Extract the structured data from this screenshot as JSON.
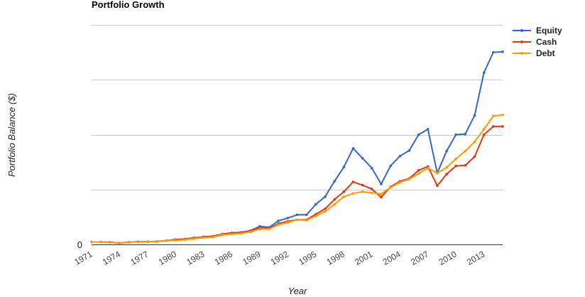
{
  "chart_data": {
    "type": "line",
    "title": "Portfolio Growth",
    "xlabel": "Year",
    "ylabel": "Portfolio Balance ($)",
    "x": [
      1971,
      1972,
      1973,
      1974,
      1975,
      1976,
      1977,
      1978,
      1979,
      1980,
      1981,
      1982,
      1983,
      1984,
      1985,
      1986,
      1987,
      1988,
      1989,
      1990,
      1991,
      1992,
      1993,
      1994,
      1995,
      1996,
      1997,
      1998,
      1999,
      2000,
      2001,
      2002,
      2003,
      2004,
      2005,
      2006,
      2007,
      2008,
      2009,
      2010,
      2011,
      2012,
      2013,
      2014,
      2015
    ],
    "x_tick_labels": [
      "1971",
      "1974",
      "1977",
      "1980",
      "1983",
      "1986",
      "1989",
      "1992",
      "1995",
      "1998",
      "2001",
      "2004",
      "2007",
      "2010",
      "2013"
    ],
    "x_tick_values": [
      1971,
      1974,
      1977,
      1980,
      1983,
      1986,
      1989,
      1992,
      1995,
      1998,
      2001,
      2004,
      2007,
      2010,
      2013
    ],
    "y_tick_labels": [
      "0"
    ],
    "ylim": [
      0,
      400
    ],
    "y_gridlines": [
      0,
      100,
      200,
      300,
      400
    ],
    "grid": true,
    "legend_position": "top-right",
    "series": [
      {
        "name": "Equity",
        "color": "#3366cc",
        "values": [
          4.5,
          4.5,
          4.0,
          2.5,
          4.0,
          5.0,
          5.0,
          5.5,
          7.0,
          8.0,
          9.0,
          11.0,
          12.5,
          14.0,
          18.0,
          21.0,
          21.0,
          25.0,
          33.0,
          31.0,
          43.0,
          48.0,
          54.0,
          54.0,
          73.0,
          87.0,
          115.0,
          141.0,
          175.0,
          157.0,
          139.0,
          110.0,
          143.0,
          161.0,
          171.0,
          200.0,
          210.0,
          130.0,
          170.0,
          200.0,
          201.0,
          235.0,
          313.0,
          350.0,
          351.0
        ]
      },
      {
        "name": "Cash",
        "color": "#dc3912",
        "values": [
          4.5,
          4.5,
          4.0,
          2.5,
          4.0,
          5.0,
          5.0,
          5.5,
          7.0,
          9.0,
          10.0,
          12.0,
          14.0,
          15.0,
          19.0,
          21.0,
          22.0,
          25.0,
          30.0,
          29.0,
          38.0,
          42.0,
          45.0,
          45.0,
          55.0,
          65.0,
          82.0,
          96.0,
          114.0,
          108.0,
          101.0,
          86.0,
          105.0,
          115.0,
          120.0,
          135.0,
          142.0,
          107.0,
          128.0,
          143.0,
          144.0,
          160.0,
          200.0,
          215.0,
          215.0
        ]
      },
      {
        "name": "Debt",
        "color": "#ff9900",
        "values": [
          4.5,
          4.5,
          4.0,
          2.5,
          4.0,
          5.0,
          5.0,
          5.5,
          7.0,
          7.5,
          8.5,
          10.5,
          12.5,
          13.5,
          17.5,
          19.0,
          20.0,
          23.0,
          28.0,
          28.0,
          36.0,
          40.0,
          45.0,
          44.0,
          52.0,
          60.0,
          73.0,
          87.0,
          93.0,
          96.0,
          94.0,
          92.0,
          104.0,
          113.0,
          119.0,
          129.0,
          139.0,
          130.0,
          140.0,
          156.0,
          170.0,
          187.0,
          210.0,
          234.0,
          236.0
        ]
      }
    ]
  }
}
